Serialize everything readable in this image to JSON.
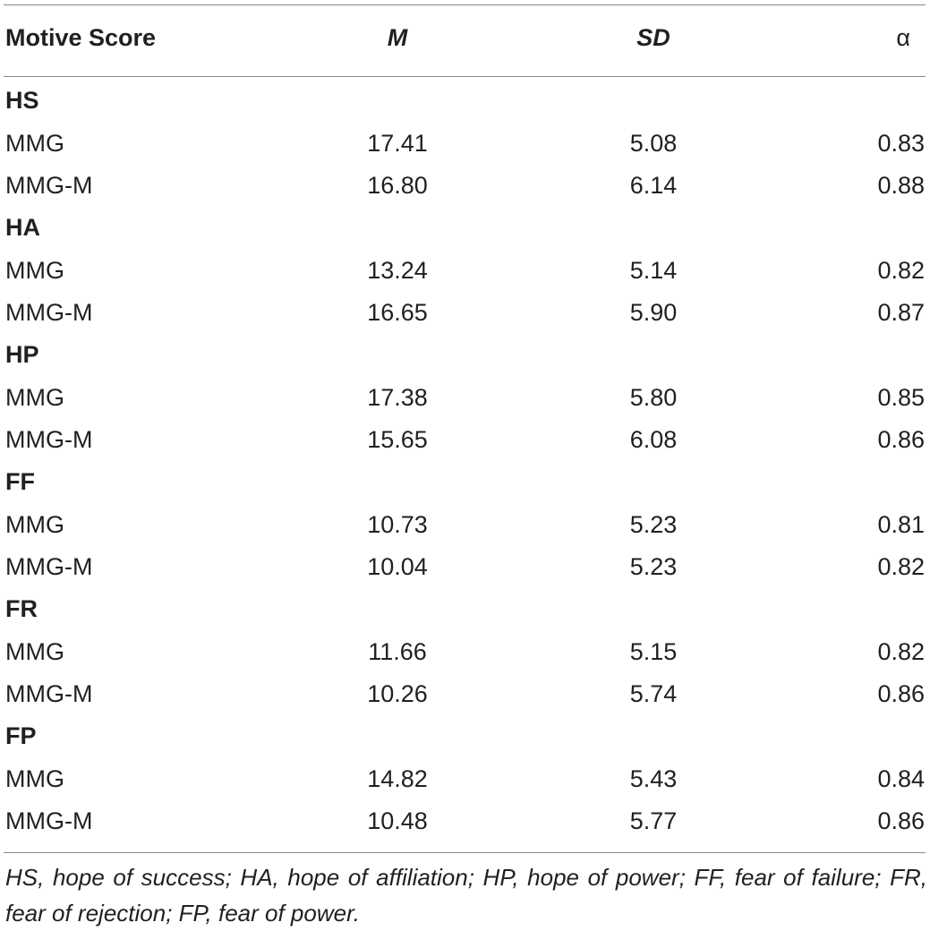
{
  "header": {
    "label": "Motive Score",
    "m": "M",
    "sd": "SD",
    "alpha": "α"
  },
  "groups": [
    {
      "name": "HS",
      "rows": [
        {
          "label": "MMG",
          "m": "17.41",
          "sd": "5.08",
          "alpha": "0.83"
        },
        {
          "label": "MMG-M",
          "m": "16.80",
          "sd": "6.14",
          "alpha": "0.88"
        }
      ]
    },
    {
      "name": "HA",
      "rows": [
        {
          "label": "MMG",
          "m": "13.24",
          "sd": "5.14",
          "alpha": "0.82"
        },
        {
          "label": "MMG-M",
          "m": "16.65",
          "sd": "5.90",
          "alpha": "0.87"
        }
      ]
    },
    {
      "name": "HP",
      "rows": [
        {
          "label": "MMG",
          "m": "17.38",
          "sd": "5.80",
          "alpha": "0.85"
        },
        {
          "label": "MMG-M",
          "m": "15.65",
          "sd": "6.08",
          "alpha": "0.86"
        }
      ]
    },
    {
      "name": "FF",
      "rows": [
        {
          "label": "MMG",
          "m": "10.73",
          "sd": "5.23",
          "alpha": "0.81"
        },
        {
          "label": "MMG-M",
          "m": "10.04",
          "sd": "5.23",
          "alpha": "0.82"
        }
      ]
    },
    {
      "name": "FR",
      "rows": [
        {
          "label": "MMG",
          "m": "11.66",
          "sd": "5.15",
          "alpha": "0.82"
        },
        {
          "label": "MMG-M",
          "m": "10.26",
          "sd": "5.74",
          "alpha": "0.86"
        }
      ]
    },
    {
      "name": "FP",
      "rows": [
        {
          "label": "MMG",
          "m": "14.82",
          "sd": "5.43",
          "alpha": "0.84"
        },
        {
          "label": "MMG-M",
          "m": "10.48",
          "sd": "5.77",
          "alpha": "0.86"
        }
      ]
    }
  ],
  "footnote": "HS, hope of success; HA, hope of affiliation; HP, hope of power; FF, fear of failure; FR, fear of rejection; FP, fear of power."
}
